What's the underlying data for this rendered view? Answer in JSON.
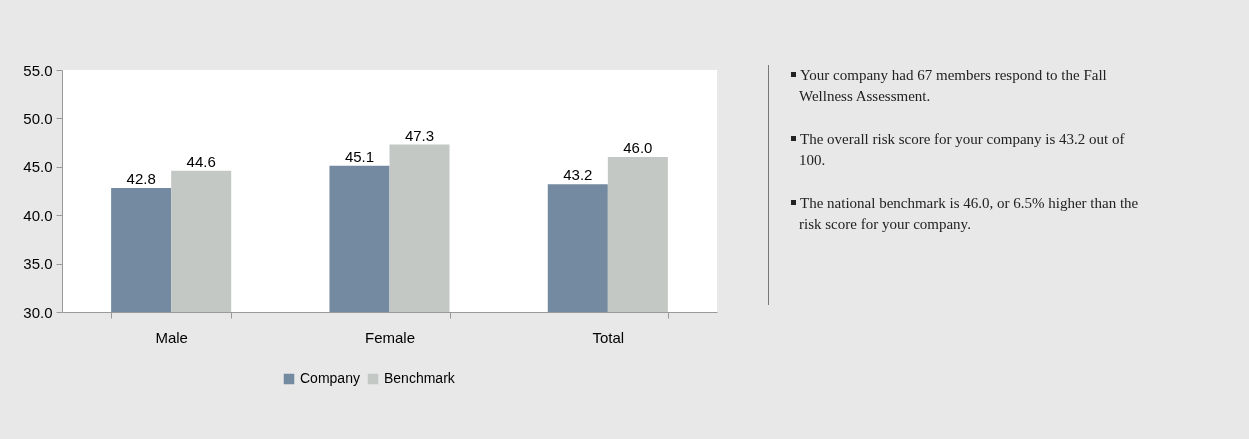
{
  "chart_data": {
    "type": "bar",
    "categories": [
      "Male",
      "Female",
      "Total"
    ],
    "series": [
      {
        "name": "Company",
        "color": "#738aa0",
        "values": [
          42.8,
          45.1,
          43.2
        ],
        "value_labels": [
          "42.8",
          "45.1",
          "43.2"
        ]
      },
      {
        "name": "Benchmark",
        "color": "#c3c8c5",
        "values": [
          44.6,
          47.3,
          46.0
        ],
        "value_labels": [
          "44.6",
          "47.3",
          "46.0"
        ]
      }
    ],
    "ylim": [
      30,
      55
    ],
    "yticks": [
      {
        "value": 30,
        "label": "30.0"
      },
      {
        "value": 35,
        "label": "35.0"
      },
      {
        "value": 40,
        "label": "40.0"
      },
      {
        "value": 45,
        "label": "45.0"
      },
      {
        "value": 50,
        "label": "50.0"
      },
      {
        "value": 55,
        "label": "55.0"
      }
    ],
    "grid": false,
    "legend": "bottom",
    "annotations": [
      "Your company had 67 members respond to the Fall Wellness Assessment.",
      "The overall risk score for your company is 43.2 out of 100.",
      "The national benchmark is 46.0, or 6.5% higher than the risk score for your company."
    ]
  }
}
